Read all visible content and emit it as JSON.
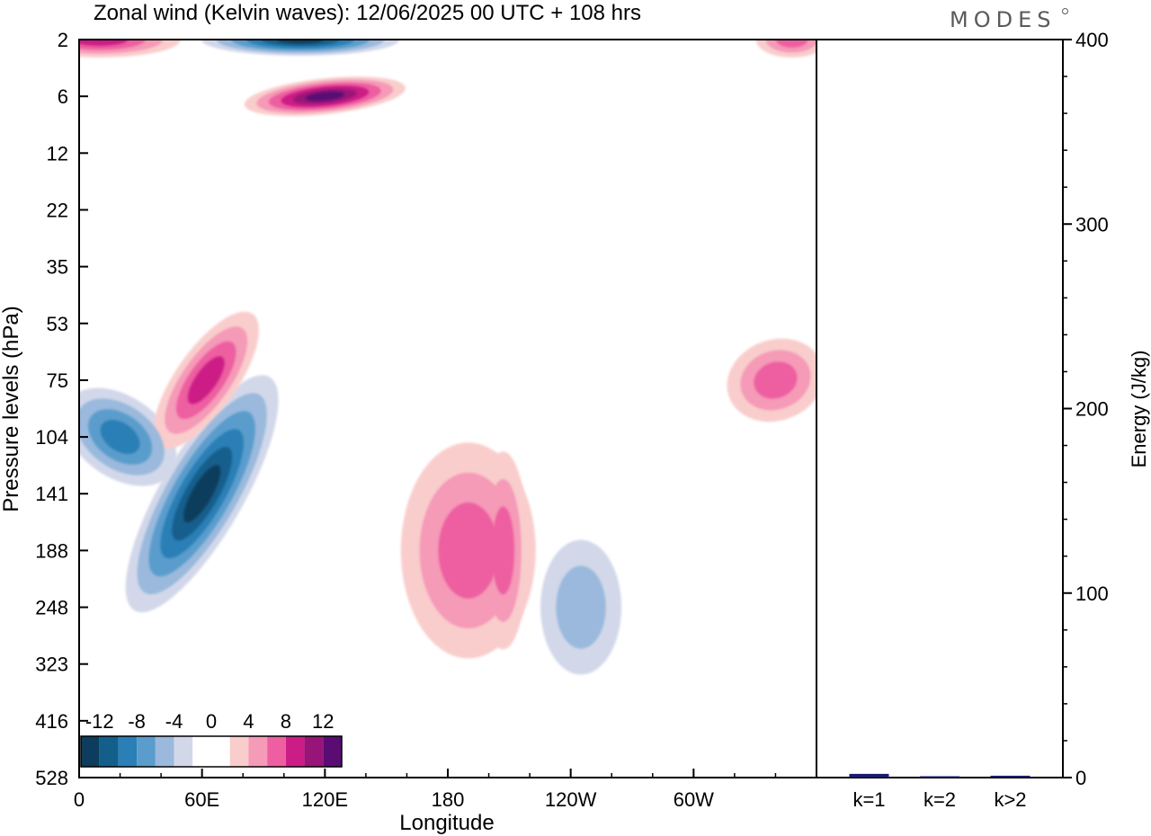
{
  "title": "Zonal wind (Kelvin waves):  12/06/2025  00 UTC  + 108 hrs",
  "brand": "MODES",
  "chart_data": [
    {
      "type": "heatmap",
      "name": "zonal-wind-contour",
      "xlabel": "Longitude",
      "ylabel": "Pressure levels (hPa)",
      "x_ticks": [
        "0",
        "60E",
        "120E",
        "180",
        "120W",
        "60W"
      ],
      "x_tick_values": [
        0,
        60,
        120,
        180,
        240,
        300
      ],
      "x_range": [
        0,
        360
      ],
      "y_ticks": [
        "2",
        "6",
        "12",
        "22",
        "35",
        "53",
        "75",
        "104",
        "141",
        "188",
        "248",
        "323",
        "416",
        "528"
      ],
      "y_scale": "categorical pressure levels, top = 2 hPa, bottom = 528 hPa",
      "colorbar": {
        "labels": [
          "-12",
          "-8",
          "-4",
          "0",
          "4",
          "8",
          "12"
        ],
        "levels": [
          -14,
          -12,
          -10,
          -8,
          -6,
          -4,
          -2,
          0,
          2,
          4,
          6,
          8,
          10,
          12,
          14
        ],
        "colors": [
          "#0d3d5c",
          "#135f8c",
          "#2a7fb6",
          "#5a9dcc",
          "#9ab9dc",
          "#d2d8ea",
          "#ffffff",
          "#ffffff",
          "#f9cdcc",
          "#f59ab7",
          "#ed5fa0",
          "#cc1d86",
          "#991478",
          "#5a0c74"
        ]
      },
      "features": [
        {
          "lon": 60,
          "level": "141",
          "value": -13,
          "desc": "strong easterly core"
        },
        {
          "lon": 20,
          "level": "104",
          "value": -9
        },
        {
          "lon": 108,
          "level": "2",
          "value": -12
        },
        {
          "lon": 120,
          "level": "6",
          "value": 12
        },
        {
          "lon": 62,
          "level": "75",
          "value": 8
        },
        {
          "lon": 190,
          "level": "188",
          "value": 7
        },
        {
          "lon": 207,
          "level": "188",
          "value": 7
        },
        {
          "lon": 245,
          "level": "248",
          "value": -5
        },
        {
          "lon": 340,
          "level": "75",
          "value": 6
        },
        {
          "lon": 10,
          "level": "2",
          "value": 8
        },
        {
          "lon": 348,
          "level": "2",
          "value": 6
        }
      ]
    },
    {
      "type": "bar",
      "name": "kelvin-wave-energy",
      "categories": [
        "k=1",
        "k=2",
        "k>2"
      ],
      "values": [
        2.0,
        0.5,
        1.0
      ],
      "ylabel": "Energy (J/kg)",
      "ylim": [
        0,
        400
      ],
      "y_ticks": [
        0,
        100,
        200,
        300,
        400
      ],
      "bar_color": "#1b1b6e"
    }
  ]
}
